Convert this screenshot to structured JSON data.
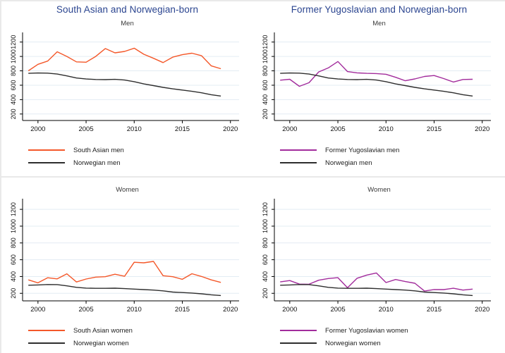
{
  "colors": {
    "title_navy": "#2b4590",
    "south_asian_orange": "#f4582a",
    "yugoslavian_purple": "#a22c9c",
    "norwegian_black": "#2e2e2e",
    "gridline": "#e3ecf3",
    "axis": "#000000"
  },
  "columns": [
    {
      "title": "South Asian and Norwegian-born"
    },
    {
      "title": "Former Yugoslavian and Norwegian-born"
    }
  ],
  "chart_data": [
    {
      "type": "line",
      "title": "Men",
      "x": [
        1999,
        2000,
        2001,
        2002,
        2003,
        2004,
        2005,
        2006,
        2007,
        2008,
        2009,
        2010,
        2011,
        2012,
        2013,
        2014,
        2015,
        2016,
        2017,
        2018,
        2019
      ],
      "series": [
        {
          "name": "South Asian men",
          "color": "#f4582a",
          "values": [
            800,
            890,
            935,
            1065,
            1000,
            925,
            920,
            1000,
            1110,
            1050,
            1070,
            1115,
            1030,
            975,
            915,
            990,
            1025,
            1045,
            1010,
            870,
            830
          ]
        },
        {
          "name": "Norwegian men",
          "color": "#2e2e2e",
          "values": [
            765,
            770,
            768,
            755,
            730,
            700,
            687,
            680,
            678,
            682,
            672,
            650,
            618,
            595,
            570,
            550,
            533,
            515,
            495,
            468,
            450
          ]
        }
      ],
      "yticks": [
        200,
        400,
        600,
        800,
        1000,
        1200
      ],
      "xticks": [
        2000,
        2005,
        2010,
        2015,
        2020
      ],
      "ylim": [
        110,
        1285
      ],
      "xlim": [
        1998.4,
        2020.9
      ],
      "grid": true,
      "legend_position": "below-left"
    },
    {
      "type": "line",
      "title": "Men",
      "x": [
        1999,
        2000,
        2001,
        2002,
        2003,
        2004,
        2005,
        2006,
        2007,
        2008,
        2009,
        2010,
        2011,
        2012,
        2013,
        2014,
        2015,
        2016,
        2017,
        2018,
        2019
      ],
      "series": [
        {
          "name": "Former Yugoslavian men",
          "color": "#a22c9c",
          "values": [
            670,
            683,
            585,
            635,
            785,
            840,
            930,
            790,
            772,
            765,
            762,
            752,
            710,
            662,
            688,
            722,
            735,
            693,
            645,
            680,
            683
          ]
        },
        {
          "name": "Norwegian men",
          "color": "#2e2e2e",
          "values": [
            765,
            770,
            768,
            755,
            730,
            700,
            687,
            680,
            678,
            682,
            672,
            650,
            618,
            595,
            570,
            550,
            533,
            515,
            495,
            468,
            450
          ]
        }
      ],
      "yticks": [
        200,
        400,
        600,
        800,
        1000,
        1200
      ],
      "xticks": [
        2000,
        2005,
        2010,
        2015,
        2020
      ],
      "ylim": [
        110,
        1285
      ],
      "xlim": [
        1998.4,
        2020.9
      ],
      "grid": true,
      "legend_position": "below-left"
    },
    {
      "type": "line",
      "title": "Women",
      "x": [
        1999,
        2000,
        2001,
        2002,
        2003,
        2004,
        2005,
        2006,
        2007,
        2008,
        2009,
        2010,
        2011,
        2012,
        2013,
        2014,
        2015,
        2016,
        2017,
        2018,
        2019
      ],
      "series": [
        {
          "name": "South Asian women",
          "color": "#f4582a",
          "values": [
            360,
            325,
            385,
            372,
            432,
            335,
            370,
            393,
            398,
            427,
            403,
            570,
            563,
            580,
            410,
            398,
            367,
            433,
            400,
            360,
            330
          ]
        },
        {
          "name": "Norwegian women",
          "color": "#2e2e2e",
          "values": [
            296,
            300,
            305,
            304,
            289,
            271,
            262,
            259,
            259,
            261,
            256,
            250,
            244,
            238,
            229,
            215,
            209,
            203,
            194,
            182,
            174
          ]
        }
      ],
      "yticks": [
        200,
        400,
        600,
        800,
        1000,
        1200
      ],
      "xticks": [
        2000,
        2005,
        2010,
        2015,
        2020
      ],
      "ylim": [
        110,
        1285
      ],
      "xlim": [
        1998.4,
        2020.9
      ],
      "grid": true,
      "legend_position": "below-left"
    },
    {
      "type": "line",
      "title": "Women",
      "x": [
        1999,
        2000,
        2001,
        2002,
        2003,
        2004,
        2005,
        2006,
        2007,
        2008,
        2009,
        2010,
        2011,
        2012,
        2013,
        2014,
        2015,
        2016,
        2017,
        2018,
        2019
      ],
      "series": [
        {
          "name": "Former Yugoslavian women",
          "color": "#a22c9c",
          "values": [
            336,
            352,
            310,
            308,
            356,
            376,
            386,
            266,
            379,
            417,
            442,
            328,
            364,
            340,
            320,
            227,
            245,
            244,
            260,
            238,
            250
          ]
        },
        {
          "name": "Norwegian women",
          "color": "#2e2e2e",
          "values": [
            296,
            300,
            305,
            304,
            289,
            271,
            262,
            259,
            259,
            261,
            256,
            250,
            244,
            238,
            229,
            215,
            209,
            203,
            194,
            182,
            174
          ]
        }
      ],
      "yticks": [
        200,
        400,
        600,
        800,
        1000,
        1200
      ],
      "xticks": [
        2000,
        2005,
        2010,
        2015,
        2020
      ],
      "ylim": [
        110,
        1285
      ],
      "xlim": [
        1998.4,
        2020.9
      ],
      "grid": true,
      "legend_position": "below-left"
    }
  ]
}
